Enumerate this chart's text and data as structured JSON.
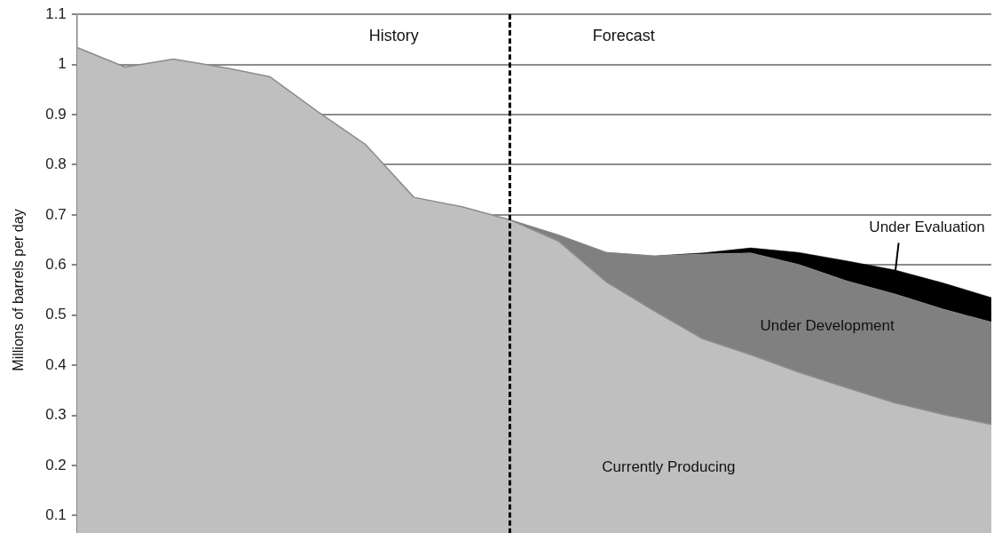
{
  "chart_data": {
    "type": "area",
    "stacked": true,
    "ylabel": "Millions of barrels per day",
    "categories": [
      null,
      null,
      null,
      null,
      null,
      null,
      null,
      null,
      null,
      null,
      null,
      null,
      null,
      null,
      null,
      null,
      null,
      null,
      null,
      null
    ],
    "ylim": [
      0,
      1.1
    ],
    "yticks": [
      0.1,
      0.2,
      0.3,
      0.4,
      0.5,
      0.6,
      0.7,
      0.8,
      0.9,
      1,
      1.1
    ],
    "grid": "y",
    "legend": false,
    "series": [
      {
        "name": "Currently Producing",
        "color": "#bfbfbf",
        "values": [
          1.034,
          0.995,
          1.011,
          0.995,
          0.976,
          0.906,
          0.84,
          0.735,
          0.716,
          0.69,
          0.648,
          0.566,
          0.508,
          0.453,
          0.421,
          0.386,
          0.355,
          0.325,
          0.302,
          0.282
        ]
      },
      {
        "name": "Under Development",
        "color": "#808080",
        "values": [
          null,
          null,
          null,
          null,
          null,
          null,
          null,
          null,
          null,
          0,
          0.012,
          0.059,
          0.11,
          0.169,
          0.203,
          0.215,
          0.213,
          0.217,
          0.21,
          0.204
        ]
      },
      {
        "name": "Under Evaluation",
        "color": "#000000",
        "values": [
          null,
          null,
          null,
          null,
          null,
          null,
          null,
          null,
          null,
          0,
          0,
          0,
          0,
          0.002,
          0.01,
          0.024,
          0.04,
          0.048,
          0.052,
          0.049
        ]
      }
    ],
    "annotations": [
      "History",
      "Forecast"
    ]
  }
}
